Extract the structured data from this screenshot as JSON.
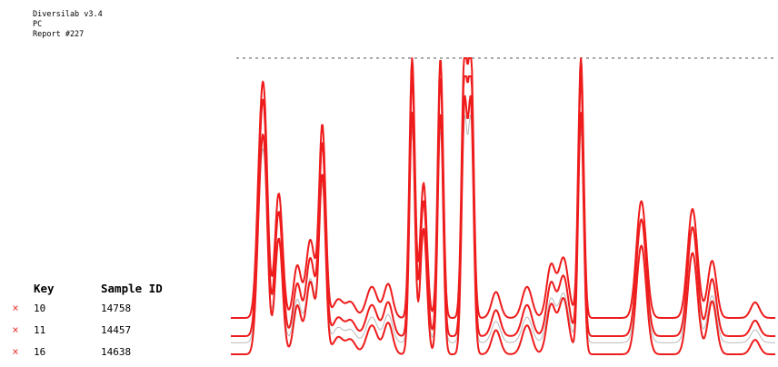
{
  "header": {
    "line1": "Diversilab v3.4",
    "line2": "PC",
    "line3": "Report #227"
  },
  "key_table": {
    "col_key": "Key",
    "col_sample": "Sample ID",
    "mark": "×",
    "rows": [
      {
        "key": "10",
        "sample_id": "14758"
      },
      {
        "key": "11",
        "sample_id": "14457"
      },
      {
        "key": "16",
        "sample_id": "14638"
      }
    ]
  },
  "colors": {
    "trace": "#ee1c1c",
    "average": "#b9b9b9",
    "threshold": "#555555"
  },
  "chart_data": {
    "type": "line",
    "ylim": [
      0,
      100
    ],
    "xlim": [
      0,
      100
    ],
    "threshold": 100,
    "grid": false,
    "legend": "bottom-left",
    "peaks": [
      {
        "x": 5.5,
        "h": 62,
        "w": 0.7
      },
      {
        "x": 6.3,
        "h": 48,
        "w": 0.6
      },
      {
        "x": 8.8,
        "h": 48,
        "w": 0.7
      },
      {
        "x": 12.2,
        "h": 20,
        "w": 0.7
      },
      {
        "x": 14.6,
        "h": 30,
        "w": 0.8
      },
      {
        "x": 16.8,
        "h": 74,
        "w": 0.6
      },
      {
        "x": 19.7,
        "h": 7,
        "w": 0.9
      },
      {
        "x": 22.0,
        "h": 6,
        "w": 0.9
      },
      {
        "x": 25.9,
        "h": 12,
        "w": 1.0
      },
      {
        "x": 28.9,
        "h": 13,
        "w": 0.8
      },
      {
        "x": 33.3,
        "h": 100,
        "w": 0.5
      },
      {
        "x": 35.4,
        "h": 52,
        "w": 0.6
      },
      {
        "x": 38.5,
        "h": 100,
        "w": 0.5
      },
      {
        "x": 42.9,
        "h": 100,
        "w": 0.5
      },
      {
        "x": 44.1,
        "h": 100,
        "w": 0.5
      },
      {
        "x": 48.7,
        "h": 10,
        "w": 0.8
      },
      {
        "x": 54.4,
        "h": 12,
        "w": 0.9
      },
      {
        "x": 58.8,
        "h": 20,
        "w": 0.8
      },
      {
        "x": 61.1,
        "h": 23,
        "w": 0.9
      },
      {
        "x": 64.3,
        "h": 100,
        "w": 0.5
      },
      {
        "x": 75.4,
        "h": 45,
        "w": 0.9
      },
      {
        "x": 84.8,
        "h": 42,
        "w": 0.9
      },
      {
        "x": 88.4,
        "h": 22,
        "w": 0.8
      },
      {
        "x": 96.3,
        "h": 6,
        "w": 0.8
      }
    ],
    "series": [
      {
        "key": "10",
        "offset": 0,
        "scale": 1.0
      },
      {
        "key": "11",
        "offset": -7,
        "scale": 1.0
      },
      {
        "key": "16",
        "offset": -14,
        "scale": 0.93
      }
    ]
  }
}
